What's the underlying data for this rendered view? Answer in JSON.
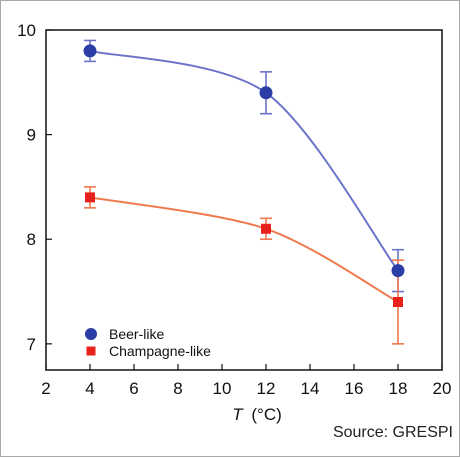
{
  "chart_data": {
    "type": "line",
    "title": "",
    "xlabel": {
      "var": "T",
      "unit": "(°C)"
    },
    "ylabel": "",
    "xlim": [
      2,
      20
    ],
    "ylim": [
      6.75,
      10
    ],
    "xticks": [
      2,
      4,
      6,
      8,
      10,
      12,
      14,
      16,
      18,
      20
    ],
    "yticks": [
      7,
      8,
      9,
      10
    ],
    "xtick_labels": [
      "2",
      "4",
      "6",
      "8",
      "10",
      "12",
      "14",
      "16",
      "18",
      "20"
    ],
    "ytick_labels": [
      "7",
      "8",
      "9",
      "10"
    ],
    "grid": false,
    "legend_position": "bottom-left",
    "series": [
      {
        "name": "Beer-like",
        "marker": "circle",
        "color": "#2b3ea6",
        "line_color": "#6c74c9",
        "x": [
          4,
          12,
          18
        ],
        "y": [
          9.8,
          9.4,
          7.7
        ],
        "err": [
          0.1,
          0.2,
          0.2
        ]
      },
      {
        "name": "Champagne-like",
        "marker": "square",
        "color": "#e8211c",
        "line_color": "#f07a4e",
        "x": [
          4,
          12,
          18
        ],
        "y": [
          8.4,
          8.1,
          7.4
        ],
        "err": [
          0.1,
          0.1,
          0.4
        ]
      }
    ]
  },
  "source": "Source: GRESPI"
}
